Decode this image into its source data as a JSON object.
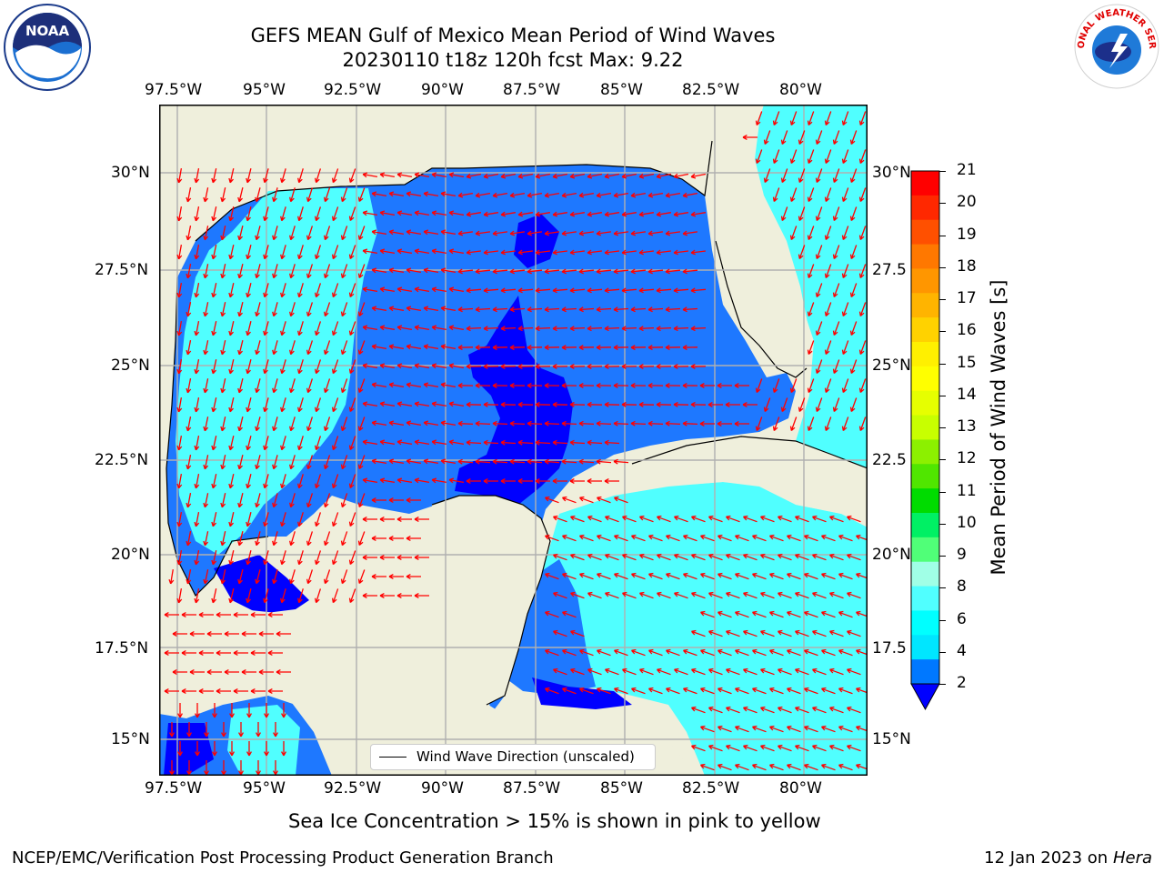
{
  "title": {
    "line1": "GEFS MEAN Gulf of Mexico Mean Period of Wind Waves",
    "line2": "20230110 t18z 120h fcst   Max: 9.22"
  },
  "logos": {
    "left_name": "NOAA",
    "right_text": "NATIONAL WEATHER SERVICE"
  },
  "axes": {
    "lon_labels": [
      "97.5°W",
      "95°W",
      "92.5°W",
      "90°W",
      "87.5°W",
      "85°W",
      "82.5°W",
      "80°W"
    ],
    "lat_labels_left": [
      "30°N",
      "27.5°N",
      "25°N",
      "22.5°N",
      "20°N",
      "17.5°N",
      "15°N"
    ],
    "lat_labels_right": [
      "30°N",
      "27.5",
      "25°N",
      "22.5",
      "20°N",
      "17.5",
      "15°N"
    ]
  },
  "colorbar": {
    "label": "Mean Period of Wind Waves [s]",
    "ticks": [
      "21",
      "20",
      "19",
      "18",
      "17",
      "16",
      "15",
      "14",
      "13",
      "12",
      "11",
      "10",
      "9",
      "8",
      "6",
      "4",
      "2"
    ],
    "colors_top_to_bottom": [
      "#ff0000",
      "#ff2800",
      "#ff5000",
      "#ff7800",
      "#ff9600",
      "#ffb400",
      "#ffd200",
      "#fff000",
      "#ffff00",
      "#e6ff00",
      "#c8ff00",
      "#8cf000",
      "#50e600",
      "#00dc00",
      "#00f064",
      "#50ff78",
      "#a0ffe6",
      "#50ffff",
      "#00ffff",
      "#00e6ff",
      "#0078ff"
    ],
    "extend_color": "#0000ff"
  },
  "legend": {
    "label": "Wind Wave Direction (unscaled)"
  },
  "map_colors": {
    "land": "#efefdc",
    "water_dark": "#0000ff",
    "water_mid": "#1e78ff",
    "water_light": "#50ffff",
    "water_cyan": "#00ffff",
    "arrow": "#ff0000",
    "grid": "#b0b0b0"
  },
  "footer": {
    "ice_note": "Sea Ice Concentration > 15% is shown in pink to yellow",
    "left": "NCEP/EMC/Verification Post Processing Product Generation Branch",
    "right_date": "12 Jan 2023 on ",
    "right_machine": "Hera"
  }
}
